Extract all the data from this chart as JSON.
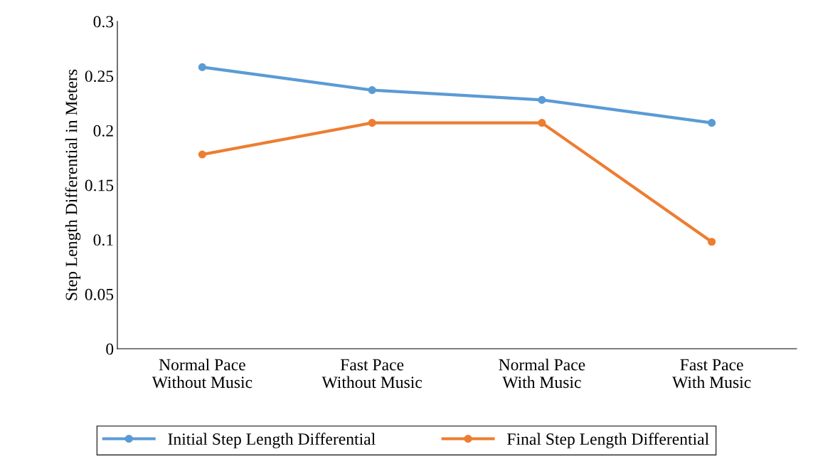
{
  "chart_data": {
    "type": "line",
    "ylabel": "Step Length Differential in Meters",
    "categories": [
      "Normal Pace\nWithout Music",
      "Fast Pace\nWithout Music",
      "Normal Pace\nWith Music",
      "Fast Pace\nWith Music"
    ],
    "series": [
      {
        "name": "Initial Step Length Differential",
        "color": "#5b9bd5",
        "values": [
          0.258,
          0.237,
          0.228,
          0.207
        ]
      },
      {
        "name": "Final Step Length Differential",
        "color": "#ed7d31",
        "values": [
          0.178,
          0.207,
          0.207,
          0.098
        ]
      }
    ],
    "ylim": [
      0,
      0.3
    ],
    "yticks": [
      0,
      0.05,
      0.1,
      0.15,
      0.2,
      0.25,
      0.3
    ],
    "grid": false,
    "legend": "bottom",
    "marker": "circle",
    "line_style": "solid"
  }
}
